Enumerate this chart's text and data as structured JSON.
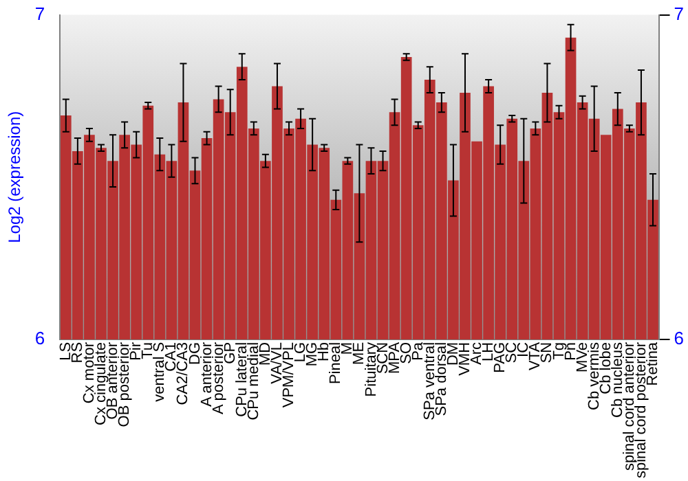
{
  "chart_data": {
    "type": "bar",
    "ylabel": "Log2 (expression)",
    "categories": [
      "LS",
      "RS",
      "Cx motor",
      "Cx cingulate",
      "OB anterior",
      "OB posterior",
      "Pir",
      "Tu",
      "ventral S",
      "CA1",
      "CA2/CA3",
      "DG",
      "A anterior",
      "A posterior",
      "GP",
      "CPu lateral",
      "CPu medial",
      "MD",
      "VA/VL",
      "VPM/VPL",
      "LG",
      "MG",
      "Hb",
      "Pineal",
      "M",
      "ME",
      "Pituitary",
      "SCN",
      "MPA",
      "SO",
      "Pa",
      "SPa ventral",
      "SPa dorsal",
      "DM",
      "VMH",
      "Arc",
      "LH",
      "PAG",
      "SC",
      "IC",
      "VTA",
      "SN",
      "Tg",
      "Pn",
      "MVe",
      "Cb vermis",
      "Cb lobe",
      "Cb nucleus",
      "spinal cord anterior",
      "spinal cord posterior",
      "Retina"
    ],
    "values": [
      6.69,
      6.58,
      6.63,
      6.59,
      6.55,
      6.63,
      6.6,
      6.72,
      6.57,
      6.55,
      6.73,
      6.52,
      6.62,
      6.74,
      6.7,
      6.84,
      6.65,
      6.55,
      6.78,
      6.65,
      6.68,
      6.6,
      6.59,
      6.43,
      6.55,
      6.45,
      6.55,
      6.55,
      6.7,
      6.87,
      6.66,
      6.8,
      6.73,
      6.49,
      6.76,
      6.61,
      6.78,
      6.6,
      6.68,
      6.55,
      6.65,
      6.76,
      6.7,
      6.93,
      6.73,
      6.68,
      6.63,
      6.71,
      6.65,
      6.73,
      6.43
    ],
    "errors": [
      0.05,
      0.04,
      0.02,
      0.01,
      0.08,
      0.04,
      0.04,
      0.01,
      0.05,
      0.05,
      0.12,
      0.04,
      0.02,
      0.04,
      0.07,
      0.04,
      0.02,
      0.02,
      0.07,
      0.02,
      0.03,
      0.08,
      0.01,
      0.03,
      0.01,
      0.15,
      0.04,
      0.03,
      0.04,
      0.01,
      0.01,
      0.04,
      0.03,
      0.11,
      0.12,
      null,
      0.02,
      0.06,
      0.01,
      0.13,
      0.02,
      0.09,
      0.02,
      0.04,
      0.02,
      0.1,
      null,
      0.05,
      0.01,
      0.1,
      0.08
    ],
    "color": "#b83333",
    "ylim": [
      6,
      7
    ],
    "yticks": [
      6,
      7
    ],
    "y2lim": [
      6,
      7
    ],
    "y2ticks": [
      6,
      7
    ],
    "grid": false,
    "legend": false
  }
}
